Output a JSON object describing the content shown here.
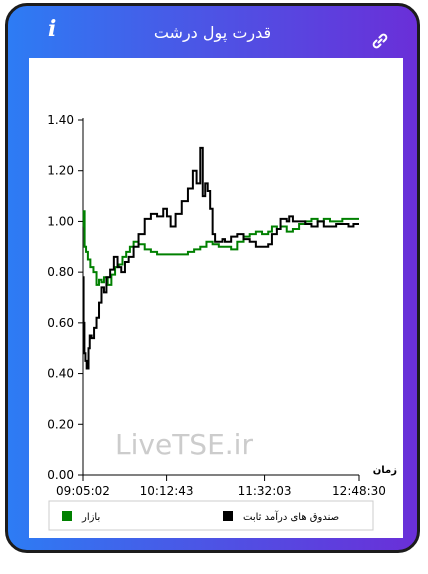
{
  "header": {
    "title": "قدرت پول درشت",
    "info_icon": "info-icon",
    "link_icon": "link-icon"
  },
  "colors": {
    "market": "#008000",
    "fixed_income": "#000000",
    "gradient_left": "#2d7cf4",
    "gradient_right": "#6a2fd8"
  },
  "watermark": "LiveTSE.ir",
  "legend": {
    "market_label": "بازار",
    "fixed_income_label": "صندوق های درآمد ثابت"
  },
  "chart_data": {
    "type": "line",
    "title": "قدرت پول درشت",
    "xlabel": "زمان",
    "ylabel": "",
    "ylim": [
      0,
      1.4
    ],
    "yticks": [
      "0.00",
      "0.20",
      "0.40",
      "0.60",
      "0.80",
      "1.00",
      "1.20",
      "1.40"
    ],
    "xlim": [
      "09:05:02",
      "12:48:30"
    ],
    "xticks": [
      "09:05:02",
      "10:12:43",
      "11:32:03",
      "12:48:30"
    ],
    "grid": false,
    "legend_position": "bottom",
    "series": [
      {
        "name": "بازار",
        "color": "#008000",
        "x": [
          "09:05:02",
          "09:05:40",
          "09:06:20",
          "09:07:30",
          "09:09:00",
          "09:11:00",
          "09:13:30",
          "09:16:00",
          "09:18:00",
          "09:20:00",
          "09:22:00",
          "09:25:00",
          "09:28:00",
          "09:31:00",
          "09:34:00",
          "09:37:00",
          "09:40:00",
          "09:43:00",
          "09:46:00",
          "09:50:00",
          "09:55:00",
          "10:00:00",
          "10:05:00",
          "10:10:00",
          "10:15:00",
          "10:20:00",
          "10:25:00",
          "10:30:00",
          "10:35:00",
          "10:40:00",
          "10:45:00",
          "10:50:00",
          "10:55:00",
          "11:00:00",
          "11:05:00",
          "11:10:00",
          "11:15:00",
          "11:20:00",
          "11:25:00",
          "11:30:00",
          "11:35:00",
          "11:38:00",
          "11:42:00",
          "11:45:00",
          "11:50:00",
          "11:55:00",
          "12:00:00",
          "12:05:00",
          "12:10:00",
          "12:15:00",
          "12:20:00",
          "12:25:00",
          "12:30:00",
          "12:35:00",
          "12:40:00",
          "12:44:00",
          "12:48:30"
        ],
        "values": [
          0.98,
          1.04,
          0.9,
          0.88,
          0.85,
          0.82,
          0.8,
          0.75,
          0.77,
          0.76,
          0.78,
          0.75,
          0.79,
          0.82,
          0.83,
          0.86,
          0.88,
          0.9,
          0.92,
          0.91,
          0.89,
          0.88,
          0.87,
          0.87,
          0.87,
          0.87,
          0.87,
          0.88,
          0.89,
          0.9,
          0.92,
          0.91,
          0.9,
          0.9,
          0.89,
          0.92,
          0.94,
          0.95,
          0.96,
          0.95,
          0.96,
          0.98,
          0.97,
          0.98,
          0.96,
          0.97,
          0.99,
          1.0,
          1.01,
          1.0,
          1.01,
          1.0,
          1.0,
          1.01,
          1.01,
          1.01,
          1.01
        ]
      },
      {
        "name": "صندوق های درآمد ثابت",
        "color": "#000000",
        "x": [
          "09:05:02",
          "09:05:30",
          "09:06:10",
          "09:07:00",
          "09:08:00",
          "09:09:30",
          "09:10:30",
          "09:12:00",
          "09:14:00",
          "09:16:00",
          "09:18:00",
          "09:20:00",
          "09:22:00",
          "09:24:00",
          "09:27:00",
          "09:30:00",
          "09:33:00",
          "09:36:00",
          "09:39:00",
          "09:42:00",
          "09:46:00",
          "09:50:00",
          "09:55:00",
          "10:00:00",
          "10:05:00",
          "10:10:00",
          "10:13:00",
          "10:16:00",
          "10:20:00",
          "10:25:00",
          "10:30:00",
          "10:34:00",
          "10:37:00",
          "10:40:00",
          "10:42:00",
          "10:44:00",
          "10:46:00",
          "10:48:00",
          "10:50:00",
          "10:52:00",
          "10:55:00",
          "10:58:00",
          "11:00:00",
          "11:05:00",
          "11:10:00",
          "11:15:00",
          "11:20:00",
          "11:25:00",
          "11:30:00",
          "11:35:00",
          "11:38:00",
          "11:42:00",
          "11:45:00",
          "11:50:00",
          "11:52:00",
          "11:55:00",
          "12:00:00",
          "12:05:00",
          "12:10:00",
          "12:15:00",
          "12:20:00",
          "12:25:00",
          "12:30:00",
          "12:35:00",
          "12:40:00",
          "12:44:00",
          "12:48:30"
        ],
        "values": [
          0.78,
          0.6,
          0.48,
          0.45,
          0.42,
          0.5,
          0.55,
          0.54,
          0.58,
          0.62,
          0.68,
          0.74,
          0.72,
          0.78,
          0.81,
          0.86,
          0.82,
          0.8,
          0.84,
          0.86,
          0.9,
          0.95,
          1.01,
          1.03,
          1.02,
          1.05,
          1.02,
          0.98,
          1.03,
          1.08,
          1.13,
          1.2,
          1.15,
          1.29,
          1.1,
          1.15,
          1.12,
          1.05,
          0.95,
          0.92,
          0.92,
          0.93,
          0.92,
          0.94,
          0.95,
          0.93,
          0.92,
          0.9,
          0.9,
          0.91,
          0.95,
          0.97,
          1.01,
          1.0,
          1.02,
          1.0,
          1.0,
          0.99,
          0.98,
          1.0,
          0.98,
          0.98,
          0.99,
          0.99,
          0.98,
          0.99,
          0.99
        ]
      }
    ]
  }
}
